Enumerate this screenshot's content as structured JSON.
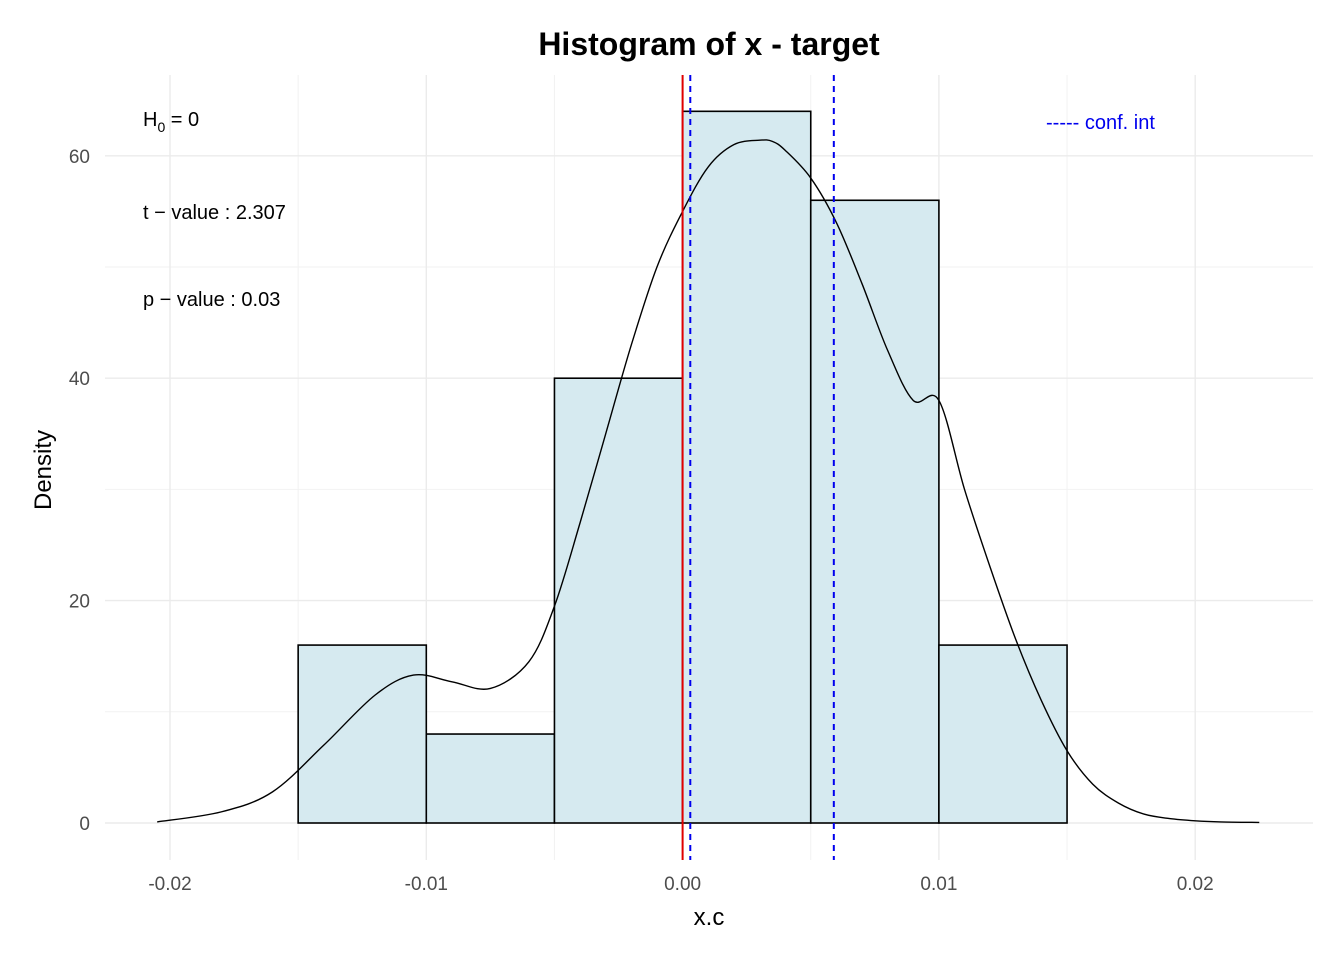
{
  "chart_data": {
    "type": "bar",
    "title": "Histogram of x - target",
    "xlabel": "x.c",
    "ylabel": "Density",
    "xlim": [
      -0.0205,
      0.0225
    ],
    "ylim": [
      0,
      67
    ],
    "x_ticks": [
      -0.02,
      -0.01,
      0.0,
      0.01,
      0.02
    ],
    "x_tick_labels": [
      "-0.02",
      "-0.01",
      "0.00",
      "0.01",
      "0.02"
    ],
    "y_ticks": [
      0,
      20,
      40,
      60
    ],
    "y_tick_labels": [
      "0",
      "20",
      "40",
      "60"
    ],
    "grid": true,
    "bins": [
      {
        "x0": -0.015,
        "x1": -0.01,
        "density": 16
      },
      {
        "x0": -0.01,
        "x1": -0.005,
        "density": 8
      },
      {
        "x0": -0.005,
        "x1": 0.0,
        "density": 40
      },
      {
        "x0": 0.0,
        "x1": 0.005,
        "density": 64
      },
      {
        "x0": 0.005,
        "x1": 0.01,
        "density": 56
      },
      {
        "x0": 0.01,
        "x1": 0.015,
        "density": 16
      }
    ],
    "bar_fill": "#d6eaf0",
    "bar_stroke": "#000000",
    "density_curve": {
      "x": [
        -0.0205,
        -0.018,
        -0.016,
        -0.014,
        -0.012,
        -0.0105,
        -0.009,
        -0.0075,
        -0.006,
        -0.005,
        -0.004,
        -0.003,
        -0.002,
        -0.001,
        0.0,
        0.001,
        0.002,
        0.003,
        0.0035,
        0.004,
        0.005,
        0.006,
        0.007,
        0.008,
        0.009,
        0.01,
        0.011,
        0.012,
        0.013,
        0.014,
        0.015,
        0.016,
        0.017,
        0.018,
        0.019,
        0.02,
        0.021,
        0.0225
      ],
      "y": [
        0.1,
        1.0,
        2.8,
        7.0,
        11.5,
        13.3,
        12.7,
        12.1,
        14.5,
        19.5,
        27,
        35,
        43,
        50,
        55,
        59,
        61,
        61.4,
        61.3,
        60.5,
        58,
        54,
        48.5,
        42.5,
        38,
        38,
        30,
        23,
        16.5,
        11,
        6.5,
        3.5,
        1.8,
        0.8,
        0.4,
        0.2,
        0.1,
        0.05
      ]
    },
    "h0_line": {
      "x": 0.0,
      "color": "#e00000"
    },
    "conf_int": {
      "lower": 0.0003,
      "upper": 0.0059,
      "color": "#0000ee"
    },
    "annotations": {
      "h0_label": "H",
      "h0_sub": "0",
      "h0_value": " = 0",
      "t_label": "t − value : 2.307",
      "p_label": "p − value : 0.03"
    },
    "legend": {
      "label": "----- conf. int",
      "position": "top-right"
    }
  }
}
